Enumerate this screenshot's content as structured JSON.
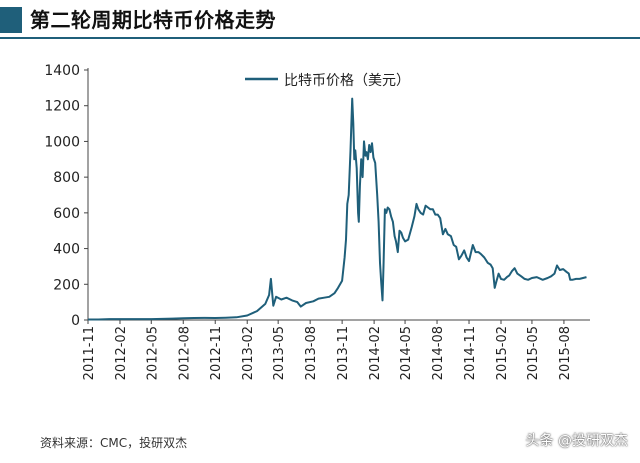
{
  "header": {
    "title": "第二轮周期比特币价格走势"
  },
  "footer": {
    "source": "资料来源：CMC，投研双杰",
    "watermark": "头条 @投研双杰"
  },
  "colors": {
    "accent": "#1f5f7a",
    "line": "#1f5f7a"
  },
  "chart_data": {
    "type": "line",
    "title": "第二轮周期比特币价格走势",
    "xlabel": "",
    "ylabel": "",
    "ylim": [
      0,
      1400
    ],
    "yticks": [
      0,
      200,
      400,
      600,
      800,
      1000,
      1200,
      1400
    ],
    "xticks": [
      "2011-11",
      "2012-02",
      "2012-05",
      "2012-08",
      "2012-11",
      "2013-02",
      "2013-05",
      "2013-08",
      "2013-11",
      "2014-02",
      "2014-05",
      "2014-08",
      "2014-11",
      "2015-02",
      "2015-05",
      "2015-08"
    ],
    "legend": {
      "position": "top-center"
    },
    "grid": false,
    "series": [
      {
        "name": "比特币价格（美元）",
        "color": "#1f5f7a",
        "points": [
          [
            "2011-11-01",
            3
          ],
          [
            "2011-12-01",
            3
          ],
          [
            "2012-01-01",
            5
          ],
          [
            "2012-02-01",
            5
          ],
          [
            "2012-03-01",
            5
          ],
          [
            "2012-04-01",
            5
          ],
          [
            "2012-05-01",
            5
          ],
          [
            "2012-06-01",
            6
          ],
          [
            "2012-07-01",
            8
          ],
          [
            "2012-08-01",
            10
          ],
          [
            "2012-09-01",
            11
          ],
          [
            "2012-10-01",
            12
          ],
          [
            "2012-11-01",
            11
          ],
          [
            "2012-12-01",
            13
          ],
          [
            "2013-01-01",
            15
          ],
          [
            "2013-02-01",
            25
          ],
          [
            "2013-03-01",
            50
          ],
          [
            "2013-03-25",
            90
          ],
          [
            "2013-04-05",
            140
          ],
          [
            "2013-04-10",
            230
          ],
          [
            "2013-04-17",
            80
          ],
          [
            "2013-04-25",
            130
          ],
          [
            "2013-05-10",
            115
          ],
          [
            "2013-05-25",
            125
          ],
          [
            "2013-06-10",
            110
          ],
          [
            "2013-06-25",
            100
          ],
          [
            "2013-07-05",
            75
          ],
          [
            "2013-07-20",
            95
          ],
          [
            "2013-08-10",
            105
          ],
          [
            "2013-08-25",
            120
          ],
          [
            "2013-09-10",
            125
          ],
          [
            "2013-09-25",
            130
          ],
          [
            "2013-10-10",
            150
          ],
          [
            "2013-10-20",
            180
          ],
          [
            "2013-11-01",
            220
          ],
          [
            "2013-11-08",
            350
          ],
          [
            "2013-11-12",
            450
          ],
          [
            "2013-11-16",
            650
          ],
          [
            "2013-11-20",
            700
          ],
          [
            "2013-11-25",
            950
          ],
          [
            "2013-11-30",
            1240
          ],
          [
            "2013-12-03",
            1100
          ],
          [
            "2013-12-06",
            900
          ],
          [
            "2013-12-09",
            950
          ],
          [
            "2013-12-13",
            850
          ],
          [
            "2013-12-17",
            600
          ],
          [
            "2013-12-19",
            550
          ],
          [
            "2013-12-22",
            750
          ],
          [
            "2013-12-26",
            900
          ],
          [
            "2013-12-30",
            800
          ],
          [
            "2014-01-03",
            1000
          ],
          [
            "2014-01-07",
            920
          ],
          [
            "2014-01-10",
            940
          ],
          [
            "2014-01-14",
            900
          ],
          [
            "2014-01-18",
            980
          ],
          [
            "2014-01-22",
            940
          ],
          [
            "2014-01-26",
            990
          ],
          [
            "2014-01-30",
            910
          ],
          [
            "2014-02-04",
            880
          ],
          [
            "2014-02-10",
            700
          ],
          [
            "2014-02-14",
            550
          ],
          [
            "2014-02-18",
            320
          ],
          [
            "2014-02-21",
            220
          ],
          [
            "2014-02-25",
            110
          ],
          [
            "2014-02-28",
            300
          ],
          [
            "2014-03-04",
            620
          ],
          [
            "2014-03-08",
            600
          ],
          [
            "2014-03-12",
            630
          ],
          [
            "2014-03-17",
            620
          ],
          [
            "2014-03-22",
            580
          ],
          [
            "2014-03-27",
            550
          ],
          [
            "2014-04-01",
            470
          ],
          [
            "2014-04-05",
            440
          ],
          [
            "2014-04-10",
            380
          ],
          [
            "2014-04-15",
            500
          ],
          [
            "2014-04-20",
            490
          ],
          [
            "2014-04-25",
            460
          ],
          [
            "2014-05-01",
            440
          ],
          [
            "2014-05-10",
            450
          ],
          [
            "2014-05-20",
            520
          ],
          [
            "2014-05-28",
            580
          ],
          [
            "2014-06-03",
            650
          ],
          [
            "2014-06-08",
            620
          ],
          [
            "2014-06-15",
            600
          ],
          [
            "2014-06-22",
            590
          ],
          [
            "2014-06-29",
            640
          ],
          [
            "2014-07-06",
            630
          ],
          [
            "2014-07-13",
            620
          ],
          [
            "2014-07-20",
            620
          ],
          [
            "2014-07-27",
            590
          ],
          [
            "2014-08-03",
            590
          ],
          [
            "2014-08-10",
            570
          ],
          [
            "2014-08-18",
            480
          ],
          [
            "2014-08-25",
            510
          ],
          [
            "2014-09-01",
            480
          ],
          [
            "2014-09-10",
            470
          ],
          [
            "2014-09-18",
            420
          ],
          [
            "2014-09-25",
            410
          ],
          [
            "2014-10-03",
            340
          ],
          [
            "2014-10-10",
            360
          ],
          [
            "2014-10-18",
            390
          ],
          [
            "2014-10-25",
            350
          ],
          [
            "2014-11-01",
            330
          ],
          [
            "2014-11-12",
            420
          ],
          [
            "2014-11-20",
            380
          ],
          [
            "2014-11-28",
            380
          ],
          [
            "2014-12-05",
            370
          ],
          [
            "2014-12-15",
            350
          ],
          [
            "2014-12-25",
            320
          ],
          [
            "2015-01-02",
            310
          ],
          [
            "2015-01-08",
            290
          ],
          [
            "2015-01-14",
            180
          ],
          [
            "2015-01-18",
            210
          ],
          [
            "2015-01-25",
            260
          ],
          [
            "2015-02-01",
            230
          ],
          [
            "2015-02-10",
            225
          ],
          [
            "2015-02-18",
            240
          ],
          [
            "2015-02-25",
            250
          ],
          [
            "2015-03-05",
            275
          ],
          [
            "2015-03-12",
            290
          ],
          [
            "2015-03-20",
            260
          ],
          [
            "2015-03-31",
            245
          ],
          [
            "2015-04-10",
            230
          ],
          [
            "2015-04-20",
            225
          ],
          [
            "2015-05-01",
            235
          ],
          [
            "2015-05-15",
            240
          ],
          [
            "2015-06-01",
            225
          ],
          [
            "2015-06-15",
            235
          ],
          [
            "2015-06-25",
            245
          ],
          [
            "2015-07-05",
            260
          ],
          [
            "2015-07-12",
            305
          ],
          [
            "2015-07-20",
            280
          ],
          [
            "2015-07-30",
            285
          ],
          [
            "2015-08-08",
            270
          ],
          [
            "2015-08-15",
            260
          ],
          [
            "2015-08-19",
            225
          ],
          [
            "2015-08-25",
            225
          ],
          [
            "2015-09-05",
            230
          ],
          [
            "2015-09-15",
            230
          ],
          [
            "2015-09-25",
            235
          ],
          [
            "2015-10-05",
            240
          ]
        ]
      }
    ]
  }
}
